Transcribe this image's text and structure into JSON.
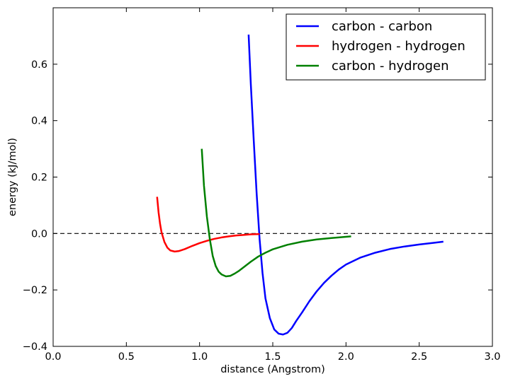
{
  "chart_data": {
    "type": "line",
    "title": "",
    "xlabel": "distance (Angstrom)",
    "ylabel": "energy (kJ/mol)",
    "xlim": [
      0.0,
      3.0
    ],
    "ylim": [
      -0.4,
      0.8
    ],
    "x_ticks": [
      0.0,
      0.5,
      1.0,
      1.5,
      2.0,
      2.5,
      3.0
    ],
    "x_tick_labels": [
      "0.0",
      "0.5",
      "1.0",
      "1.5",
      "2.0",
      "2.5",
      "3.0"
    ],
    "y_ticks": [
      -0.4,
      -0.2,
      0.0,
      0.2,
      0.4,
      0.6
    ],
    "y_tick_labels": [
      "−0.4",
      "−0.2",
      "0.0",
      "0.2",
      "0.4",
      "0.6"
    ],
    "grid": false,
    "legend_position": "top-right",
    "reference_line": {
      "y": 0.0,
      "style": "dashed",
      "color": "#000000"
    },
    "series": [
      {
        "name": "carbon - carbon",
        "color": "#0000ff",
        "x": [
          1.335,
          1.35,
          1.37,
          1.39,
          1.41,
          1.43,
          1.45,
          1.48,
          1.51,
          1.54,
          1.57,
          1.6,
          1.63,
          1.66,
          1.7,
          1.75,
          1.8,
          1.85,
          1.9,
          1.95,
          2.0,
          2.1,
          2.2,
          2.3,
          2.4,
          2.5,
          2.6,
          2.665
        ],
        "y": [
          0.705,
          0.53,
          0.33,
          0.14,
          -0.02,
          -0.14,
          -0.23,
          -0.3,
          -0.34,
          -0.355,
          -0.358,
          -0.352,
          -0.335,
          -0.31,
          -0.28,
          -0.24,
          -0.205,
          -0.175,
          -0.15,
          -0.128,
          -0.11,
          -0.085,
          -0.068,
          -0.055,
          -0.046,
          -0.039,
          -0.033,
          -0.029
        ]
      },
      {
        "name": "hydrogen - hydrogen",
        "color": "#ff0000",
        "x": [
          0.71,
          0.72,
          0.73,
          0.74,
          0.76,
          0.78,
          0.8,
          0.83,
          0.86,
          0.9,
          0.95,
          1.0,
          1.05,
          1.1,
          1.15,
          1.2,
          1.25,
          1.3,
          1.35,
          1.41
        ],
        "y": [
          0.13,
          0.075,
          0.035,
          0.005,
          -0.03,
          -0.05,
          -0.06,
          -0.064,
          -0.062,
          -0.055,
          -0.044,
          -0.034,
          -0.026,
          -0.019,
          -0.014,
          -0.01,
          -0.007,
          -0.005,
          -0.003,
          -0.002
        ]
      },
      {
        "name": "carbon - hydrogen",
        "color": "#008000",
        "x": [
          1.015,
          1.03,
          1.05,
          1.07,
          1.09,
          1.11,
          1.13,
          1.15,
          1.18,
          1.21,
          1.24,
          1.27,
          1.3,
          1.35,
          1.4,
          1.45,
          1.5,
          1.6,
          1.7,
          1.8,
          1.9,
          2.035
        ],
        "y": [
          0.3,
          0.17,
          0.06,
          -0.02,
          -0.08,
          -0.115,
          -0.135,
          -0.145,
          -0.152,
          -0.15,
          -0.142,
          -0.132,
          -0.12,
          -0.1,
          -0.082,
          -0.068,
          -0.056,
          -0.04,
          -0.029,
          -0.021,
          -0.016,
          -0.01
        ]
      }
    ]
  }
}
